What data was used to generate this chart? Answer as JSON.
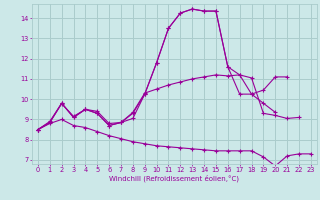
{
  "bg_color": "#cce8e8",
  "grid_color": "#aacccc",
  "line_color": "#990099",
  "xlabel": "Windchill (Refroidissement éolien,°C)",
  "xlim": [
    -0.5,
    23.5
  ],
  "ylim": [
    6.8,
    14.7
  ],
  "xticks": [
    0,
    1,
    2,
    3,
    4,
    5,
    6,
    7,
    8,
    9,
    10,
    11,
    12,
    13,
    14,
    15,
    16,
    17,
    18,
    19,
    20,
    21,
    22,
    23
  ],
  "yticks": [
    7,
    8,
    9,
    10,
    11,
    12,
    13,
    14
  ],
  "lines": [
    {
      "x": [
        0,
        1,
        2,
        3,
        4,
        5,
        6,
        7,
        8,
        9,
        10,
        11,
        12,
        13,
        14,
        15,
        16,
        17,
        18,
        19,
        20,
        21,
        22
      ],
      "y": [
        8.5,
        8.9,
        9.8,
        9.1,
        9.5,
        9.4,
        8.8,
        8.85,
        9.35,
        10.3,
        10.5,
        10.7,
        10.85,
        11.0,
        11.1,
        11.2,
        11.15,
        11.2,
        11.05,
        9.3,
        9.2,
        9.05,
        9.1
      ]
    },
    {
      "x": [
        0,
        1,
        2,
        3,
        4,
        5,
        6,
        7,
        8,
        9,
        10,
        11,
        12,
        13,
        14,
        15,
        16,
        17,
        18,
        19,
        20
      ],
      "y": [
        8.5,
        8.85,
        9.8,
        9.1,
        9.5,
        9.3,
        8.7,
        8.85,
        9.05,
        10.25,
        11.8,
        13.5,
        14.25,
        14.45,
        14.35,
        14.35,
        11.6,
        10.25,
        10.25,
        9.8,
        9.35
      ]
    },
    {
      "x": [
        0,
        1,
        2,
        3,
        4,
        5,
        6,
        7,
        8,
        9,
        10,
        11,
        12,
        13,
        14,
        15,
        16,
        17,
        18,
        19,
        20,
        21
      ],
      "y": [
        8.5,
        8.85,
        9.78,
        9.15,
        9.5,
        9.3,
        8.7,
        8.85,
        9.3,
        10.25,
        11.8,
        13.5,
        14.25,
        14.45,
        14.35,
        14.35,
        11.6,
        11.2,
        10.25,
        10.45,
        11.1,
        11.1
      ]
    },
    {
      "x": [
        0,
        1,
        2,
        3,
        4,
        5,
        6,
        7,
        8,
        9,
        10,
        11,
        12,
        13,
        14,
        15,
        16,
        17,
        18,
        19,
        20,
        21,
        22,
        23
      ],
      "y": [
        8.5,
        8.8,
        9.0,
        8.7,
        8.6,
        8.4,
        8.2,
        8.05,
        7.9,
        7.8,
        7.7,
        7.65,
        7.6,
        7.55,
        7.5,
        7.45,
        7.45,
        7.45,
        7.45,
        7.15,
        6.7,
        7.2,
        7.3,
        7.3
      ]
    }
  ]
}
